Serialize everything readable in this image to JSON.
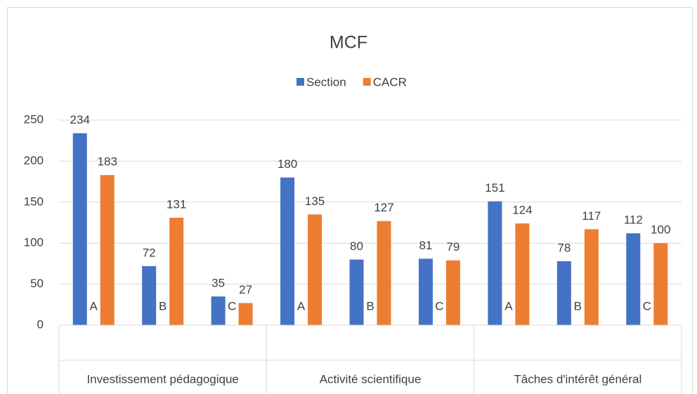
{
  "chart_data": {
    "type": "bar",
    "title": "MCF",
    "categories": [
      "A",
      "B",
      "C",
      "A",
      "B",
      "C",
      "A",
      "B",
      "C"
    ],
    "groups": [
      "Investissement pédagogique",
      "Activité scientifique",
      "Tâches d'intérêt général"
    ],
    "series": [
      {
        "name": "Section",
        "color": "#4472c4",
        "values": [
          234,
          72,
          35,
          180,
          80,
          81,
          151,
          78,
          112
        ]
      },
      {
        "name": "CACR",
        "color": "#ed7d31",
        "values": [
          183,
          131,
          27,
          135,
          127,
          79,
          124,
          117,
          100
        ]
      }
    ],
    "ylim": [
      0,
      250
    ],
    "yticks": [
      0,
      50,
      100,
      150,
      200,
      250
    ],
    "grid": true,
    "legend": "top"
  }
}
